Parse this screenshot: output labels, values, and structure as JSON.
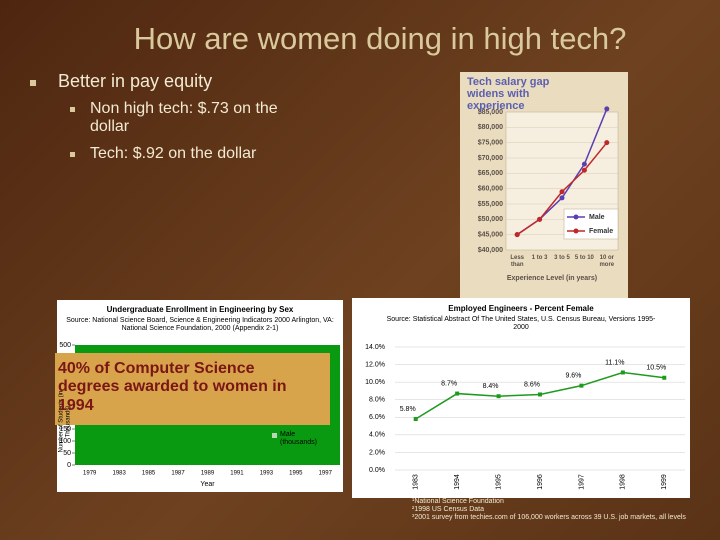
{
  "slide": {
    "title": "How are women doing in high tech?",
    "bullets": [
      {
        "text": "Better in pay equity",
        "sub": [
          "Non high tech: $.73 on the dollar",
          "Tech: $.92 on the dollar"
        ]
      }
    ]
  },
  "salary_chart": {
    "type": "line",
    "title": "Tech salary gap widens with experience",
    "categories": [
      "Less than",
      "1 to 3",
      "3 to 5",
      "5 to 10",
      "10 or more"
    ],
    "series": [
      {
        "name": "Male",
        "color": "#5b3fb0",
        "values": [
          45000,
          50000,
          57000,
          68000,
          86000
        ]
      },
      {
        "name": "Female",
        "color": "#c0282a",
        "values": [
          45000,
          50000,
          59000,
          66000,
          75000
        ]
      }
    ],
    "ylim": [
      40000,
      85000
    ],
    "yticks": [
      {
        "value": 40000,
        "label": "$40,000"
      },
      {
        "value": 45000,
        "label": "$45,000"
      },
      {
        "value": 50000,
        "label": "$50,000"
      },
      {
        "value": 55000,
        "label": "$55,000"
      },
      {
        "value": 60000,
        "label": "$60,000"
      },
      {
        "value": 65000,
        "label": "$65,000"
      },
      {
        "value": 70000,
        "label": "$70,000"
      },
      {
        "value": 75000,
        "label": "$75,000"
      },
      {
        "value": 80000,
        "label": "$80,000"
      },
      {
        "value": 85000,
        "label": "$85,000"
      }
    ],
    "x_label": "Experience Level (in years)"
  },
  "enrollment_chart": {
    "type": "bar",
    "title": "Undergraduate Enrollment in Engineering by Sex",
    "source": "Source: National Science Board, Science & Engineering Indicators 2000 Arlington, VA: National Science Foundation, 2000 (Appendix 2-1)",
    "categories": [
      "1979",
      "1983",
      "1985",
      "1987",
      "1989",
      "1991",
      "1993",
      "1995",
      "1997"
    ],
    "ylim": [
      0,
      500
    ],
    "yticks": [
      0,
      50,
      100,
      150,
      500
    ],
    "y_label": "Number of Students (in Thousands)",
    "x_label": "Year",
    "legend": "Male (thousands)"
  },
  "callout": "40% of Computer Science degrees awarded to women in 1994",
  "engineers_chart": {
    "type": "line",
    "title": "Employed Engineers - Percent Female",
    "source": "Source: Statistical Abstract Of The United States, U.S. Census Bureau, Versions 1995-2000",
    "categories": [
      "1983",
      "1994",
      "1995",
      "1996",
      "1997",
      "1998",
      "1999"
    ],
    "values": [
      5.8,
      8.7,
      8.4,
      8.6,
      9.6,
      11.1,
      10.5
    ],
    "value_labels": [
      "5.8%",
      "8.7%",
      "8.4%",
      "8.6%",
      "9.6%",
      "11.1%",
      "10.5%"
    ],
    "color": "#1e9a1e",
    "ylim": [
      0,
      14
    ],
    "yticks": [
      {
        "value": 0,
        "label": "0.0%"
      },
      {
        "value": 2,
        "label": "2.0%"
      },
      {
        "value": 4,
        "label": "4.0%"
      },
      {
        "value": 6,
        "label": "6.0%"
      },
      {
        "value": 8,
        "label": "8.0%"
      },
      {
        "value": 10,
        "label": "10.0%"
      },
      {
        "value": 12,
        "label": "12.0%"
      },
      {
        "value": 14,
        "label": "14.0%"
      }
    ]
  },
  "footnotes": [
    "¹National Science Foundation",
    "²1998 US Census Data",
    "³2001 survey from techies.com of 106,000 workers across 39 U.S. job markets, all levels"
  ]
}
